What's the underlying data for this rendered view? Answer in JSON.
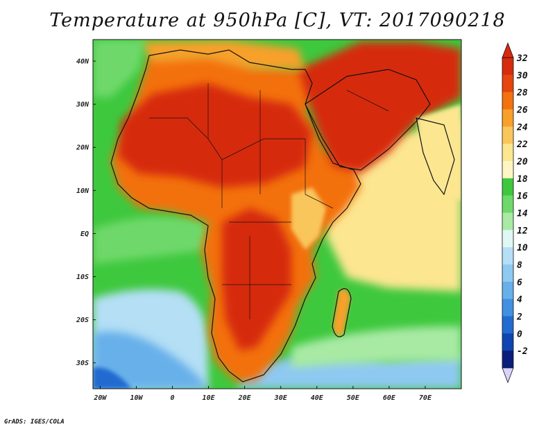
{
  "title": "Temperature at 950hPa [C], VT: 2017090218",
  "credit": "GrADS: IGES/COLA",
  "lat_labels": [
    "40N",
    "30N",
    "20N",
    "10N",
    "EQ",
    "10S",
    "20S",
    "30S"
  ],
  "lat_values": [
    40,
    30,
    20,
    10,
    0,
    -10,
    -20,
    -30
  ],
  "lon_labels": [
    "20W",
    "10W",
    "0",
    "10E",
    "20E",
    "30E",
    "40E",
    "50E",
    "60E",
    "70E"
  ],
  "lon_values": [
    -20,
    -10,
    0,
    10,
    20,
    30,
    40,
    50,
    60,
    70
  ],
  "map_extent": {
    "lon_min": -22,
    "lon_max": 80,
    "lat_min": -36,
    "lat_max": 45
  },
  "colorbar": {
    "levels": [
      "32",
      "30",
      "28",
      "26",
      "24",
      "22",
      "20",
      "18",
      "16",
      "14",
      "12",
      "10",
      "8",
      "6",
      "4",
      "2",
      "0",
      "-2"
    ],
    "colors": [
      "#d62c0d",
      "#e6450e",
      "#f3710f",
      "#f7a02a",
      "#f9c65b",
      "#fce690",
      "#fdf6c4",
      "#3ec83e",
      "#6ed96b",
      "#a8eaa4",
      "#dff8f4",
      "#b4dff5",
      "#8ec9f1",
      "#67b0ea",
      "#4290e0",
      "#226bd0",
      "#0f45b0",
      "#0b1f7a"
    ],
    "bottom_arrow_color": "#d9d4ff",
    "top_arrow_color": "#d62c0d"
  }
}
